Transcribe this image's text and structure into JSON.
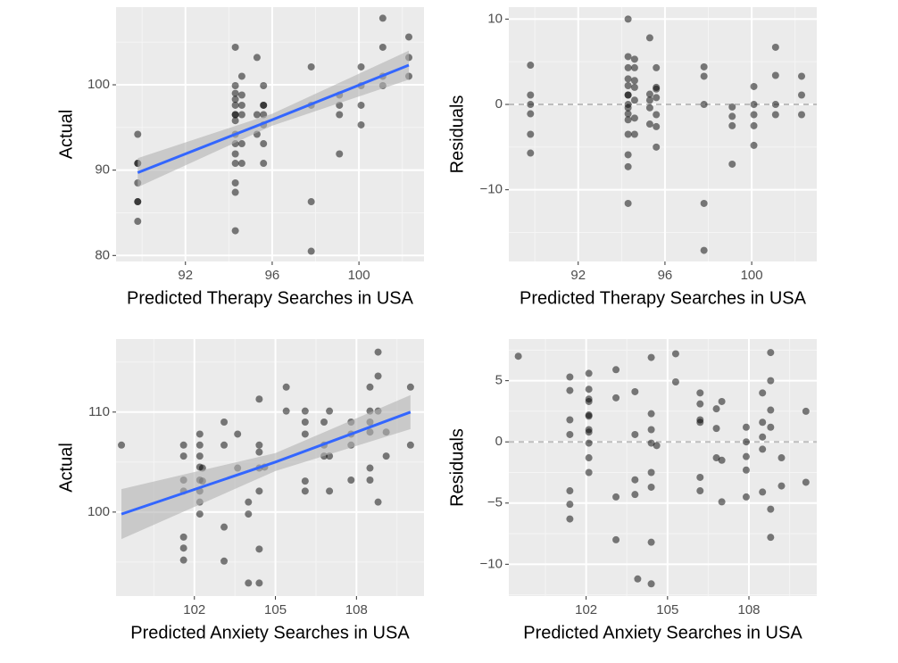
{
  "chart_data": [
    {
      "type": "scatter",
      "x_label": "Predicted Therapy Searches in USA",
      "y_label": "Actual",
      "color": "#000000",
      "grid": true,
      "xlim": [
        88.8,
        103.0
      ],
      "ylim": [
        79.3,
        109.1
      ],
      "xticks": [
        92,
        96,
        100
      ],
      "yticks": [
        80,
        90,
        100
      ],
      "x": [
        89.8,
        89.8,
        89.8,
        89.8,
        89.8,
        89.8,
        89.8,
        94.3,
        94.3,
        94.3,
        94.3,
        94.3,
        94.3,
        94.3,
        94.3,
        94.3,
        94.3,
        94.3,
        94.3,
        94.3,
        94.3,
        94.3,
        94.6,
        94.6,
        94.6,
        94.6,
        94.6,
        94.6,
        95.3,
        95.3,
        95.3,
        95.6,
        95.6,
        95.6,
        95.6,
        95.6,
        95.6,
        95.6,
        97.8,
        97.8,
        97.8,
        97.8,
        99.1,
        99.1,
        99.1,
        99.1,
        100.1,
        100.1,
        100.1,
        100.1,
        101.1,
        101.1,
        101.1,
        101.1,
        102.3,
        102.3,
        102.3
      ],
      "y": [
        94.2,
        90.8,
        90.8,
        88.5,
        86.3,
        86.3,
        84.0,
        104.4,
        99.9,
        99.0,
        98.3,
        97.6,
        96.5,
        96.5,
        95.8,
        94.2,
        93.1,
        91.9,
        90.8,
        88.5,
        87.4,
        82.9,
        101.0,
        98.8,
        97.6,
        96.5,
        93.1,
        90.8,
        103.2,
        96.5,
        94.2,
        99.9,
        97.6,
        97.6,
        96.5,
        95.3,
        93.1,
        90.8,
        102.1,
        97.6,
        86.3,
        80.5,
        98.8,
        97.6,
        96.5,
        91.9,
        102.1,
        99.9,
        97.6,
        95.3,
        107.8,
        104.4,
        101.0,
        99.9,
        105.6,
        103.2,
        101.0
      ],
      "fit": {
        "color": "#3366ff",
        "band_color": "#b3b3b3",
        "x": [
          89.8,
          96,
          102.3
        ],
        "y": [
          89.7,
          95.9,
          102.3
        ],
        "lower": [
          88.0,
          95.2,
          100.6
        ],
        "upper": [
          91.4,
          96.6,
          104.0
        ]
      }
    },
    {
      "type": "scatter",
      "x_label": "Predicted Therapy Searches in USA",
      "y_label": "Residuals",
      "color": "#000000",
      "grid": true,
      "xlim": [
        88.8,
        103.0
      ],
      "ylim": [
        -18.4,
        11.4
      ],
      "xticks": [
        92,
        96,
        100
      ],
      "yticks": [
        {
          "value": -10,
          "label": "−10"
        },
        0,
        10
      ],
      "reference_line": 0,
      "x": [
        89.8,
        89.8,
        89.8,
        89.8,
        89.8,
        89.8,
        94.3,
        94.3,
        94.3,
        94.3,
        94.3,
        94.3,
        94.3,
        94.3,
        94.3,
        94.3,
        94.3,
        94.3,
        94.3,
        94.3,
        94.3,
        94.6,
        94.6,
        94.6,
        94.6,
        94.6,
        94.6,
        94.6,
        95.3,
        95.3,
        95.3,
        95.3,
        95.3,
        95.6,
        95.6,
        95.6,
        95.6,
        95.6,
        95.6,
        95.6,
        97.8,
        97.8,
        97.8,
        97.8,
        97.8,
        99.1,
        99.1,
        99.1,
        99.1,
        100.1,
        100.1,
        100.1,
        100.1,
        100.1,
        101.1,
        101.1,
        101.1,
        101.1,
        102.3,
        102.3,
        102.3
      ],
      "y": [
        4.6,
        1.1,
        0,
        -1.1,
        -3.5,
        -5.7,
        10,
        5.6,
        4.3,
        3,
        2.2,
        1.1,
        1.1,
        0,
        -0.4,
        -1.1,
        -1.8,
        -3.5,
        -5.9,
        -7.3,
        -11.6,
        5.3,
        4.3,
        2.8,
        2.0,
        0.5,
        -1.6,
        -3.5,
        7.8,
        1.2,
        0.5,
        -0.4,
        -2.3,
        4.3,
        2.0,
        1.8,
        0.8,
        -1.2,
        -2.6,
        -5.0,
        4.4,
        3.3,
        0,
        -11.6,
        -17.1,
        -0.3,
        -1.4,
        -2.5,
        -7.0,
        2.1,
        0,
        -1.2,
        -2.5,
        -4.8,
        6.7,
        3.4,
        0,
        -1.2,
        3.3,
        1.1,
        -1.2
      ]
    },
    {
      "type": "scatter",
      "x_label": "Predicted Anxiety Searches in USA",
      "y_label": "Actual",
      "color": "#000000",
      "grid": true,
      "xlim": [
        99.1,
        110.5
      ],
      "ylim": [
        91.6,
        117.3
      ],
      "xticks": [
        102,
        105,
        108
      ],
      "yticks": [
        100,
        110
      ],
      "x": [
        99.3,
        101.6,
        101.6,
        101.6,
        101.6,
        101.6,
        101.6,
        101.6,
        102.2,
        102.2,
        102.2,
        102.2,
        102.2,
        102.2,
        102.2,
        102.2,
        102.3,
        102.3,
        103.1,
        103.1,
        103.1,
        103.1,
        103.6,
        103.6,
        104.0,
        104.0,
        104.0,
        104.4,
        104.4,
        104.4,
        104.4,
        104.4,
        104.4,
        104.4,
        104.6,
        105.4,
        105.4,
        106.1,
        106.1,
        106.1,
        106.1,
        106.1,
        106.8,
        106.8,
        106.8,
        107.0,
        107.0,
        107.0,
        107.8,
        107.8,
        107.8,
        107.8,
        108.5,
        108.5,
        108.5,
        108.5,
        108.5,
        108.5,
        108.8,
        108.8,
        108.8,
        108.8,
        109.1,
        109.1,
        110.0,
        110.0
      ],
      "y": [
        106.7,
        106.7,
        105.6,
        103.2,
        102.1,
        97.5,
        96.4,
        95.2,
        107.8,
        106.7,
        105.6,
        104.5,
        103.2,
        102.1,
        101.0,
        99.8,
        104.4,
        103.1,
        109.0,
        106.7,
        98.5,
        95.1,
        107.8,
        104.4,
        101.0,
        99.8,
        92.9,
        111.3,
        106.7,
        106.0,
        104.4,
        102.1,
        96.3,
        92.9,
        104.5,
        112.5,
        110.1,
        110.1,
        109.0,
        107.8,
        103.1,
        102.1,
        109.0,
        106.7,
        105.6,
        110.1,
        105.6,
        102.1,
        109.0,
        107.8,
        106.7,
        103.2,
        112.5,
        110.1,
        109.0,
        108.0,
        104.4,
        103.2,
        116.0,
        113.6,
        110.1,
        101.0,
        108.0,
        105.6,
        112.5,
        106.7
      ],
      "fit": {
        "color": "#3366ff",
        "band_color": "#b3b3b3",
        "x": [
          99.3,
          105,
          110
        ],
        "y": [
          99.8,
          105.0,
          110.0
        ],
        "lower": [
          97.3,
          104.1,
          108.3
        ],
        "upper": [
          102.3,
          105.9,
          111.7
        ]
      }
    },
    {
      "type": "scatter",
      "x_label": "Predicted Anxiety Searches in USA",
      "y_label": "Residuals",
      "color": "#000000",
      "grid": true,
      "xlim": [
        99.15,
        110.5
      ],
      "ylim": [
        -12.6,
        8.4
      ],
      "xticks": [
        102,
        105,
        108
      ],
      "yticks": [
        {
          "value": -10,
          "label": "−10"
        },
        {
          "value": -5,
          "label": "−5"
        },
        0,
        5
      ],
      "reference_line": 0,
      "x": [
        99.5,
        101.4,
        101.4,
        101.4,
        101.4,
        101.4,
        101.4,
        101.4,
        102.1,
        102.1,
        102.1,
        102.1,
        102.1,
        102.1,
        102.1,
        102.1,
        102.1,
        102.1,
        102.1,
        103.1,
        103.1,
        103.1,
        103.1,
        103.8,
        103.8,
        103.8,
        103.8,
        104.4,
        104.4,
        104.4,
        104.4,
        104.4,
        104.4,
        104.4,
        104.4,
        104.6,
        103.9,
        105.3,
        105.3,
        106.2,
        106.2,
        106.2,
        106.2,
        106.2,
        106.2,
        106.8,
        106.8,
        106.8,
        107.0,
        107.0,
        107.0,
        107.9,
        107.9,
        107.9,
        107.9,
        107.9,
        108.5,
        108.5,
        108.5,
        108.5,
        108.5,
        108.8,
        108.8,
        108.8,
        108.8,
        108.8,
        108.8,
        109.2,
        109.2,
        110.1,
        110.1
      ],
      "y": [
        7.0,
        5.3,
        4.2,
        1.8,
        0.6,
        -4.0,
        -5.1,
        -6.3,
        5.6,
        4.3,
        3.5,
        2.2,
        2.1,
        1.0,
        0.8,
        -0.1,
        -1.3,
        -2.5,
        3.3,
        5.9,
        3.6,
        -4.5,
        -8.0,
        4.1,
        0.6,
        -3.1,
        -4.3,
        6.9,
        2.3,
        1.0,
        -0.1,
        -2.5,
        -3.7,
        -8.2,
        -11.6,
        -0.3,
        -11.2,
        7.2,
        4.9,
        4.0,
        3.1,
        1.8,
        1.6,
        -2.9,
        -4.0,
        2.7,
        1.1,
        -1.3,
        3.3,
        -1.5,
        -4.9,
        1.2,
        0.0,
        -1.2,
        -2.3,
        -4.5,
        4.0,
        1.6,
        0.4,
        -0.6,
        -4.1,
        7.3,
        5.0,
        2.6,
        1.2,
        -5.5,
        -7.8,
        -1.3,
        -3.6,
        2.5,
        -3.3
      ]
    }
  ]
}
